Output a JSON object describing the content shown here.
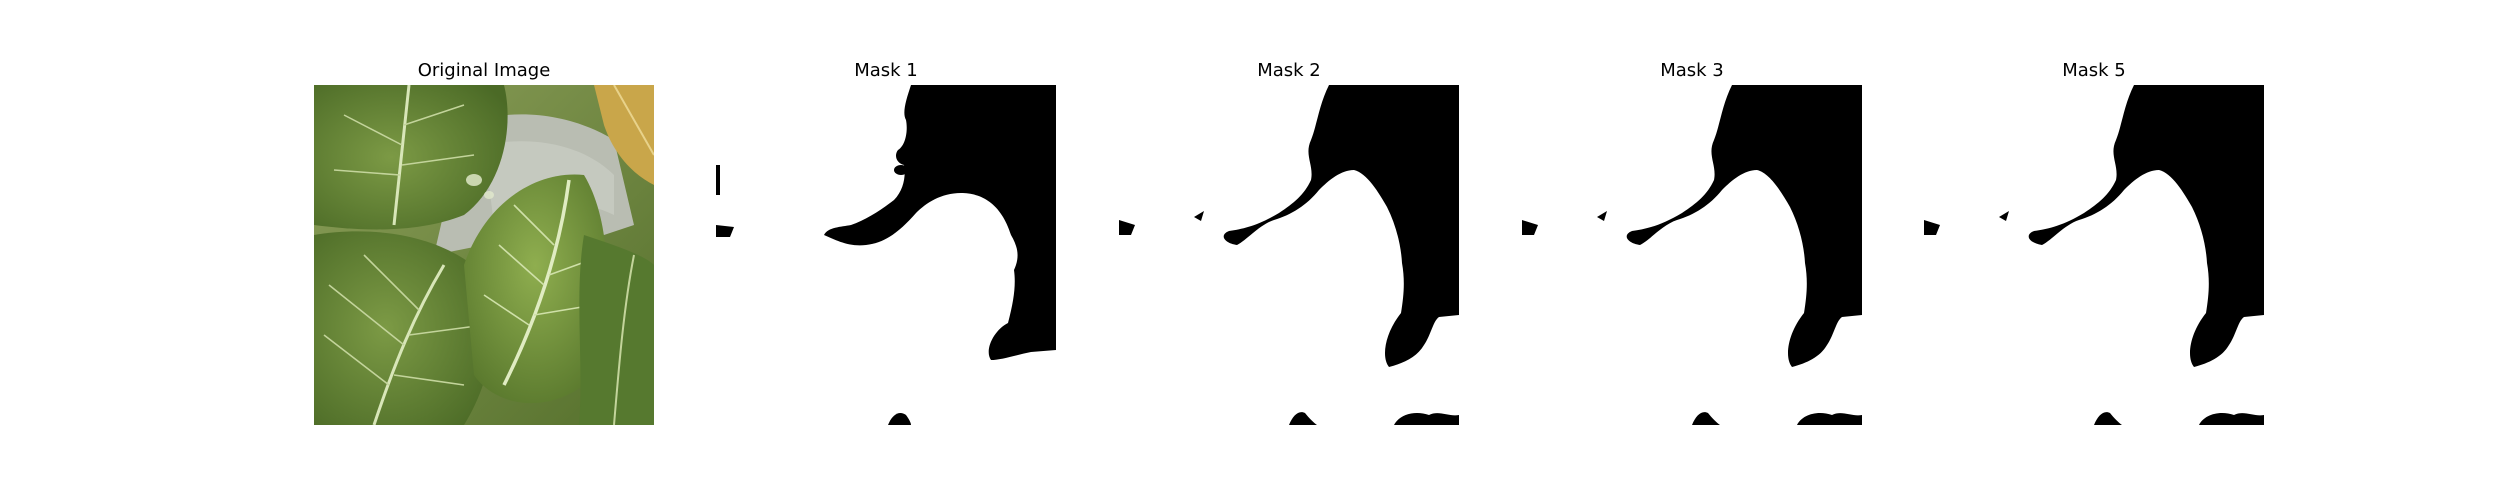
{
  "panels": [
    {
      "title": "Original Image",
      "kind": "photo"
    },
    {
      "title": "Mask 1",
      "kind": "mask"
    },
    {
      "title": "Mask 2",
      "kind": "mask"
    },
    {
      "title": "Mask 3",
      "kind": "mask"
    },
    {
      "title": "Mask 5",
      "kind": "mask"
    }
  ],
  "colors": {
    "background": "#ffffff",
    "mask_foreground": "#000000",
    "mask_background": "#ffffff",
    "leaf_dark": "#3f5f24",
    "leaf_mid": "#6f8f3c",
    "leaf_light": "#9cb25e",
    "vein": "#d8e6b8",
    "backdrop_gray": "#b9bdb2"
  }
}
